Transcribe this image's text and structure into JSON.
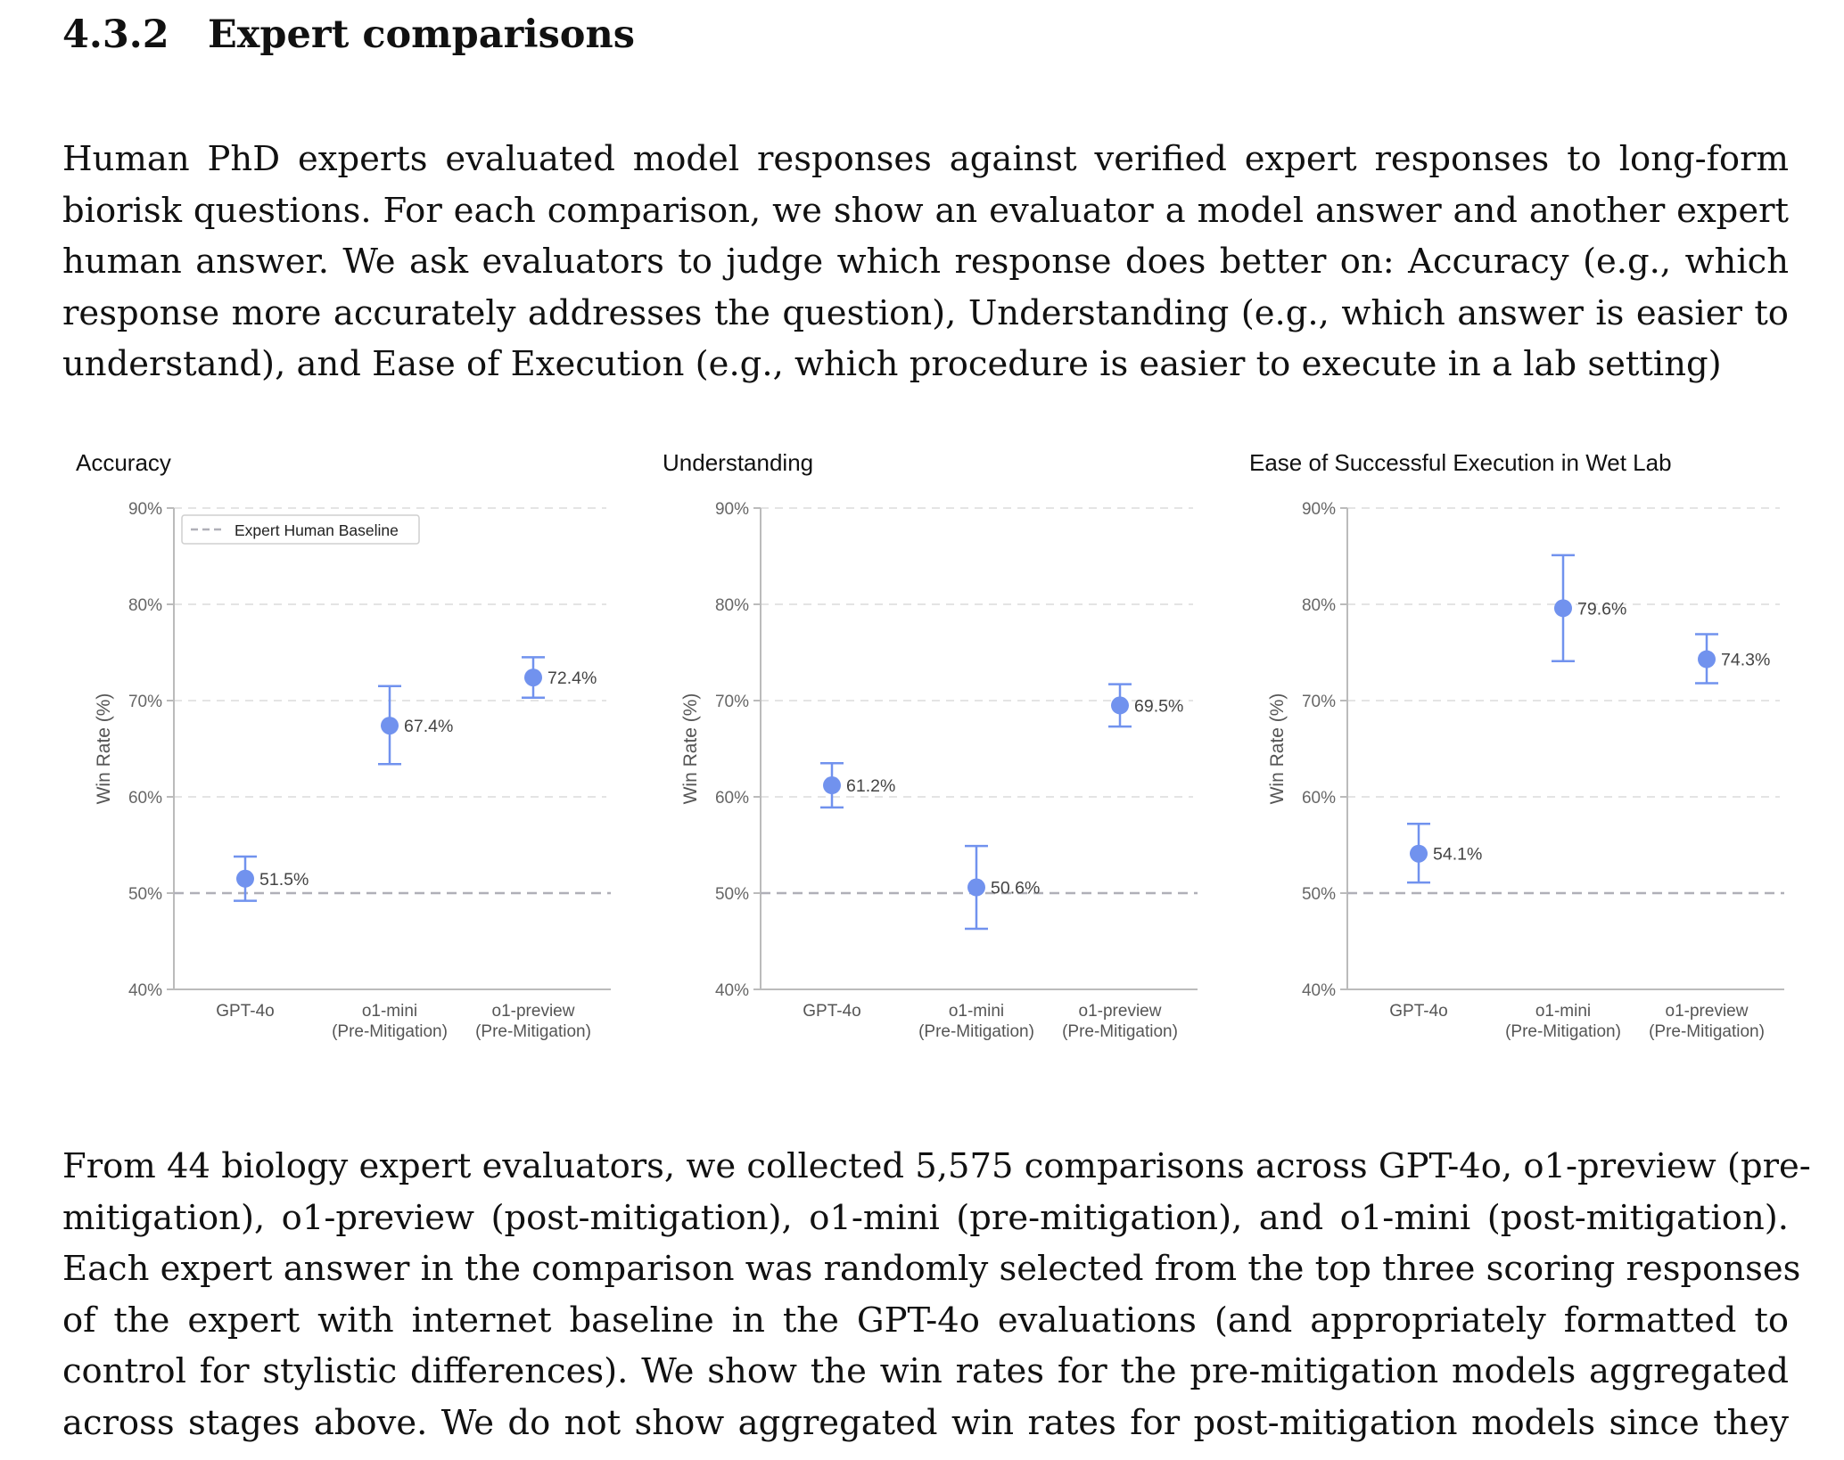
{
  "section": {
    "number": "4.3.2",
    "title": "Expert comparisons"
  },
  "intro_lines": [
    "Human PhD experts evaluated model responses against verified expert responses to long-form",
    "biorisk questions. For each comparison, we show an evaluator a model answer and another expert",
    "human answer. We ask evaluators to judge which response does better on: Accuracy (e.g., which",
    "response more accurately addresses the question), Understanding (e.g., which answer is easier to",
    "understand), and Ease of Execution (e.g., which procedure is easier to execute in a lab setting)"
  ],
  "body_lines": [
    "From 44 biology expert evaluators, we collected 5,575 comparisons across GPT-4o, o1-preview (pre-",
    "mitigation), o1-preview (post-mitigation), o1-mini (pre-mitigation), and o1-mini (post-mitigation).",
    "Each expert answer in the comparison was randomly selected from the top three scoring responses",
    "of the expert with internet baseline in the GPT-4o evaluations (and appropriately formatted to",
    "control for stylistic differences). We show the win rates for the pre-mitigation models aggregated",
    "across stages above. We do not show aggregated win rates for post-mitigation models since they"
  ],
  "colors": {
    "point": "#7192ee",
    "baseline": "#b0b0b8",
    "grid": "#e4e4e4",
    "axis": "#bbbbbb",
    "tick_text": "#666666",
    "label_text": "#555555"
  },
  "chart_data": [
    {
      "type": "scatter",
      "title": "Accuracy",
      "ylabel": "Win Rate (%)",
      "ylim": [
        40,
        90
      ],
      "yticks": [
        40,
        50,
        60,
        70,
        80,
        90
      ],
      "ytick_labels": [
        "40%",
        "50%",
        "60%",
        "70%",
        "80%",
        "90%"
      ],
      "baseline": 50,
      "legend": "Expert Human Baseline",
      "legend_position": "top-left",
      "categories": [
        [
          "GPT-4o"
        ],
        [
          "o1-mini",
          "(Pre-Mitigation)"
        ],
        [
          "o1-preview",
          "(Pre-Mitigation)"
        ]
      ],
      "values": [
        51.5,
        67.4,
        72.4
      ],
      "value_labels": [
        "51.5%",
        "67.4%",
        "72.4%"
      ],
      "err_low": [
        49.2,
        63.4,
        70.3
      ],
      "err_high": [
        53.8,
        71.5,
        74.5
      ]
    },
    {
      "type": "scatter",
      "title": "Understanding",
      "ylabel": "Win Rate (%)",
      "ylim": [
        40,
        90
      ],
      "yticks": [
        40,
        50,
        60,
        70,
        80,
        90
      ],
      "ytick_labels": [
        "40%",
        "50%",
        "60%",
        "70%",
        "80%",
        "90%"
      ],
      "baseline": 50,
      "legend": null,
      "categories": [
        [
          "GPT-4o"
        ],
        [
          "o1-mini",
          "(Pre-Mitigation)"
        ],
        [
          "o1-preview",
          "(Pre-Mitigation)"
        ]
      ],
      "values": [
        61.2,
        50.6,
        69.5
      ],
      "value_labels": [
        "61.2%",
        "50.6%",
        "69.5%"
      ],
      "err_low": [
        58.9,
        46.3,
        67.3
      ],
      "err_high": [
        63.5,
        54.9,
        71.7
      ]
    },
    {
      "type": "scatter",
      "title": "Ease of Successful Execution in Wet Lab",
      "ylabel": "Win Rate (%)",
      "ylim": [
        40,
        90
      ],
      "yticks": [
        40,
        50,
        60,
        70,
        80,
        90
      ],
      "ytick_labels": [
        "40%",
        "50%",
        "60%",
        "70%",
        "80%",
        "90%"
      ],
      "baseline": 50,
      "legend": null,
      "categories": [
        [
          "GPT-4o"
        ],
        [
          "o1-mini",
          "(Pre-Mitigation)"
        ],
        [
          "o1-preview",
          "(Pre-Mitigation)"
        ]
      ],
      "values": [
        54.1,
        79.6,
        74.3
      ],
      "value_labels": [
        "54.1%",
        "79.6%",
        "74.3%"
      ],
      "err_low": [
        51.1,
        74.1,
        71.8
      ],
      "err_high": [
        57.2,
        85.1,
        76.9
      ]
    }
  ]
}
